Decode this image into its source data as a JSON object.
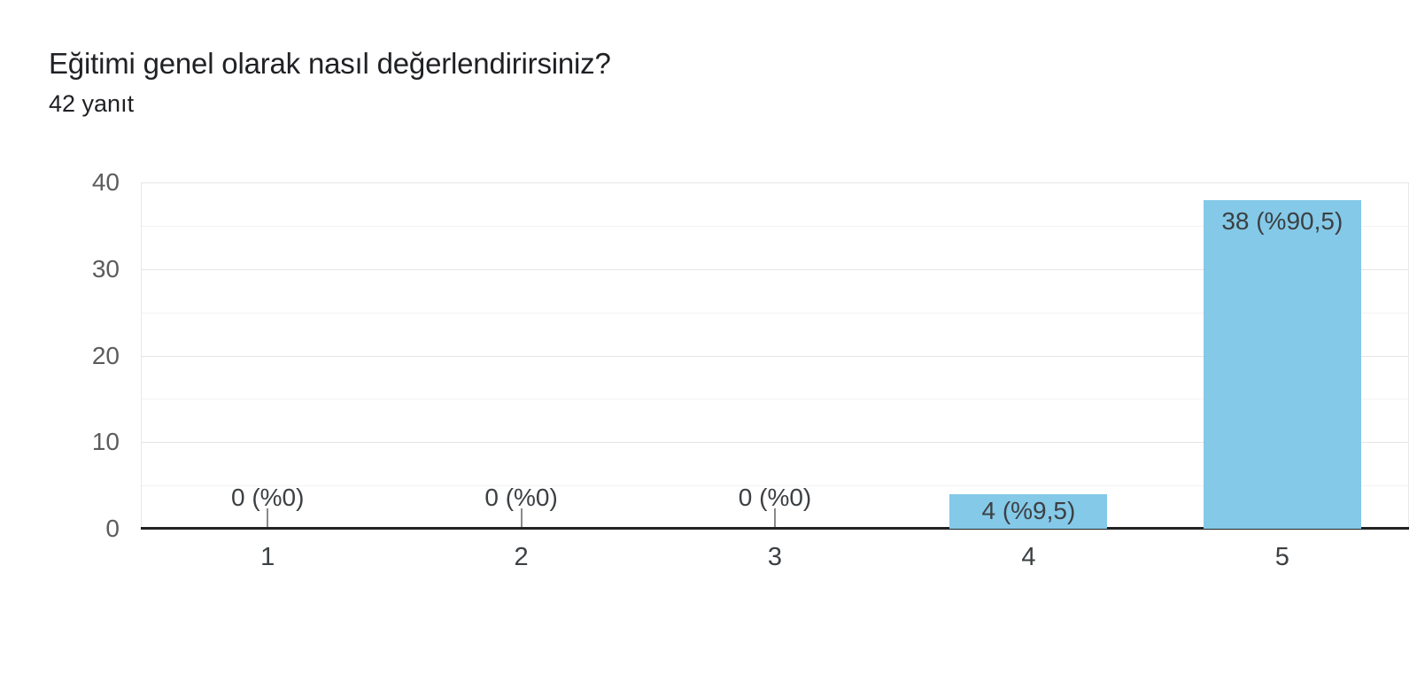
{
  "header": {
    "title": "Eğitimi genel olarak nasıl değerlendirirsiniz?",
    "responses_count": "42 yanıt"
  },
  "chart_data": {
    "type": "bar",
    "title": "Eğitimi genel olarak nasıl değerlendirirsiniz?",
    "subtitle": "42 yanıt",
    "categories": [
      "1",
      "2",
      "3",
      "4",
      "5"
    ],
    "values": [
      0,
      0,
      0,
      4,
      38
    ],
    "bar_labels": [
      "0 (%0)",
      "0 (%0)",
      "0 (%0)",
      "4 (%9,5)",
      "38 (%90,5)"
    ],
    "xlabel": "",
    "ylabel": "",
    "ylim": [
      0,
      40
    ],
    "yticks": [
      0,
      10,
      20,
      30,
      40
    ],
    "minor_gridlines": [
      5,
      15,
      25,
      35
    ],
    "grid": true,
    "legend": "none",
    "colors": {
      "bar": "#84c9e8",
      "axis_line": "#212121",
      "major_gridline": "#e5e5e5",
      "minor_gridline": "#f2f2f2",
      "plot_border": "#e8e8e8",
      "zero_stem": "#8a8a8a",
      "y_tick_label": "#5c5c5c",
      "x_tick_label": "#3c4043",
      "bar_label": "#3c4043",
      "title_text": "#202124",
      "background": "#ffffff"
    }
  }
}
